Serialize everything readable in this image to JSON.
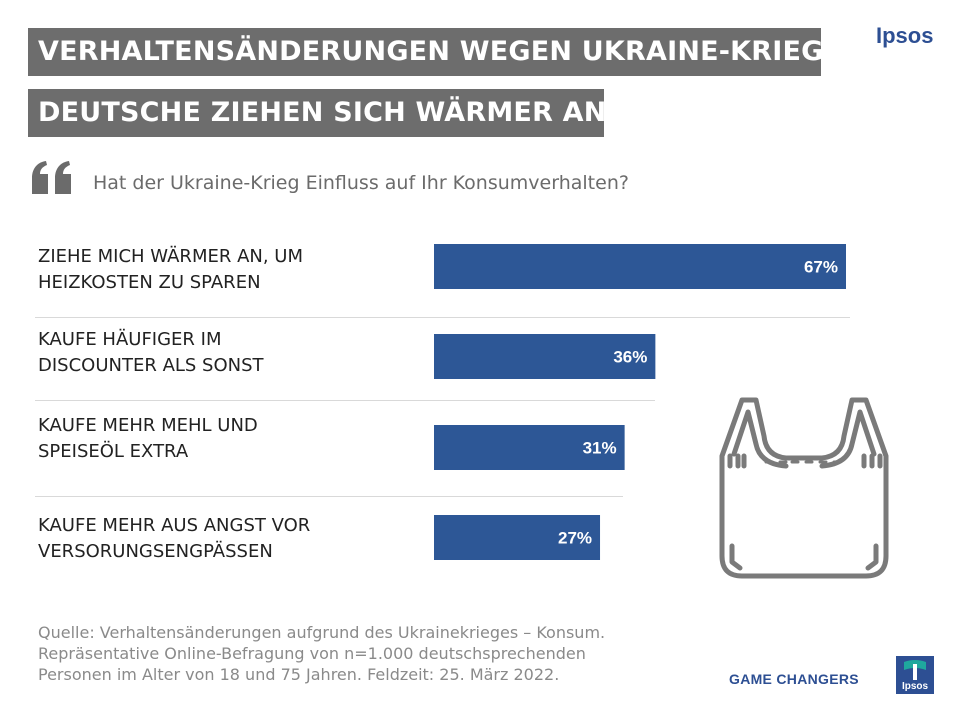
{
  "header": {
    "title_line1": "VERHALTENSÄNDERUNGEN WEGEN UKRAINE-KRIEG",
    "title_line2": "DEUTSCHE ZIEHEN SICH WÄRMER AN",
    "brand": "Ipsos"
  },
  "question": "Hat der Ukraine-Krieg Einfluss auf Ihr Konsumverhalten?",
  "chart_data": {
    "type": "bar",
    "orientation": "horizontal",
    "categories": [
      [
        "ZIEHE MICH WÄRMER AN, UM",
        "HEIZKOSTEN ZU SPAREN"
      ],
      [
        "KAUFE HÄUFIGER IM",
        "DISCOUNTER ALS SONST"
      ],
      [
        "KAUFE MEHR MEHL UND",
        "SPEISEÖL EXTRA"
      ],
      [
        "KAUFE MEHR AUS ANGST VOR",
        "VERSORUNGSENGPÄSSEN"
      ]
    ],
    "values": [
      67,
      36,
      31,
      27
    ],
    "data_labels": [
      "67%",
      "36%",
      "31%",
      "27%"
    ],
    "bar_color": "#2d5796",
    "label_color": "#ffffff",
    "grid": false
  },
  "source": {
    "line1": "Quelle: Verhaltensänderungen  aufgrund des Ukrainekrieges – Konsum.",
    "line2": "Repräsentative  Online-Befragung  von n=1.000  deutschsprechenden",
    "line3": "Personen  im Alter von 18 und 75 Jahren. Feldzeit: 25. März 2022."
  },
  "footer": {
    "tagline": "GAME CHANGERS",
    "logo_text": "Ipsos"
  },
  "icons": [
    "quote-icon",
    "shopping-bag-icon",
    "ipsos-logo-icon"
  ],
  "colors": {
    "title_bg": "#6d6d6d",
    "brand_blue": "#2d4f93",
    "bar_blue": "#2d5796"
  }
}
